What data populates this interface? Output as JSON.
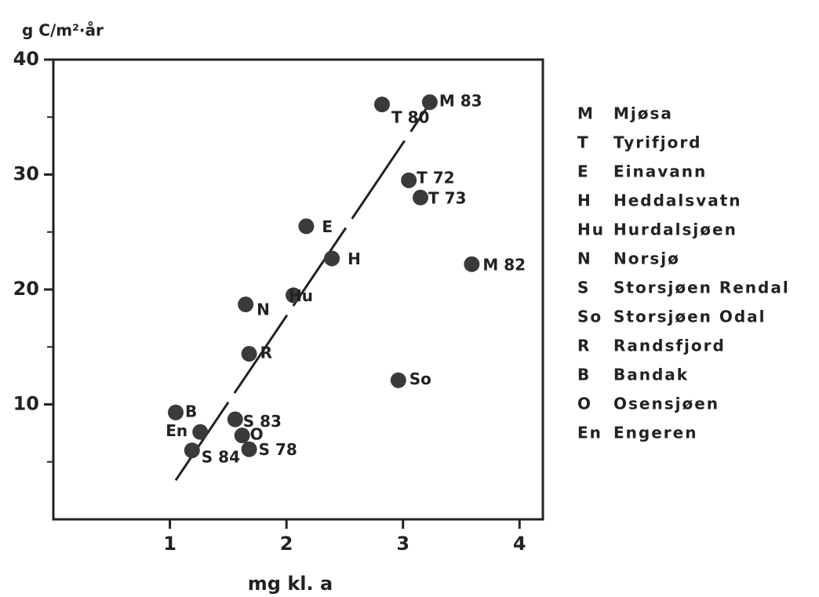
{
  "chart_data": {
    "type": "scatter",
    "y_label": "g C/m²·år",
    "x_label": "mg kl. a",
    "xlim": [
      0,
      4.2
    ],
    "xticks": [
      1,
      2,
      3,
      4
    ],
    "ylim": [
      0,
      40
    ],
    "yticks": [
      10,
      20,
      30,
      40
    ],
    "yminor_ticks": [
      5,
      15,
      25,
      35
    ],
    "color": "#3a3a3a",
    "labels": [
      "M 83",
      "T 80",
      "T 72",
      "T 73",
      "E",
      "H",
      "M 82",
      "Hu",
      "N",
      "R",
      "So",
      "B",
      "En",
      "S 83",
      "O",
      "S 78",
      "S 84"
    ],
    "x": [
      3.23,
      2.82,
      3.05,
      3.15,
      2.17,
      2.39,
      3.59,
      2.06,
      1.65,
      1.68,
      2.96,
      1.05,
      1.26,
      1.56,
      1.62,
      1.68,
      1.19
    ],
    "y": [
      36.3,
      36.1,
      29.5,
      28.0,
      25.5,
      22.7,
      22.2,
      19.5,
      18.7,
      14.4,
      12.1,
      9.3,
      7.6,
      8.7,
      7.3,
      6.1,
      6.0
    ],
    "trend_line": {
      "x": [
        1.05,
        3.25
      ],
      "y": [
        3.4,
        36.5
      ]
    },
    "legend": [
      {
        "code": "M",
        "name": "Mjøsa"
      },
      {
        "code": "T",
        "name": "Tyrifjord"
      },
      {
        "code": "E",
        "name": "Einavann"
      },
      {
        "code": "H",
        "name": "Heddalsvatn"
      },
      {
        "code": "Hu",
        "name": "Hurdalsjøen"
      },
      {
        "code": "N",
        "name": "Norsjø"
      },
      {
        "code": "S",
        "name": "Storsjøen Rendal"
      },
      {
        "code": "So",
        "name": "Storsjøen Odal"
      },
      {
        "code": "R",
        "name": "Randsfjord"
      },
      {
        "code": "B",
        "name": "Bandak"
      },
      {
        "code": "O",
        "name": "Osensjøen"
      },
      {
        "code": "En",
        "name": "Engeren"
      }
    ]
  }
}
